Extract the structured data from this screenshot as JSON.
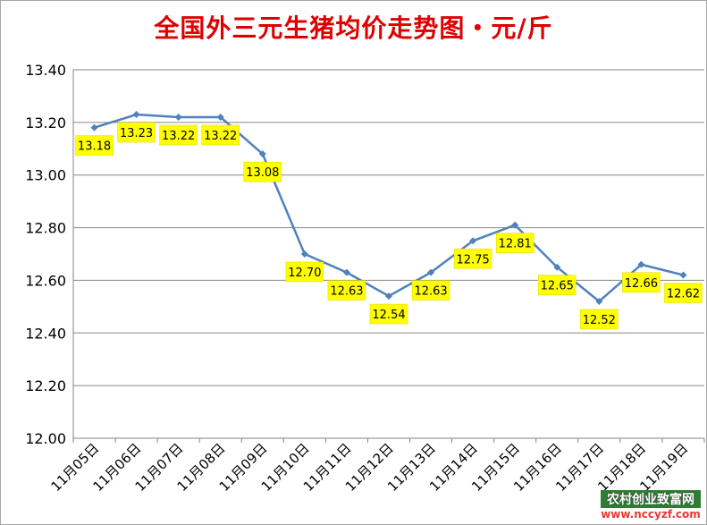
{
  "chart_data": {
    "type": "line",
    "title": "全国外三元生猪均价走势图・元/斤",
    "categories": [
      "11月05日",
      "11月06日",
      "11月07日",
      "11月08日",
      "11月09日",
      "11月10日",
      "11月11日",
      "11月12日",
      "11月13日",
      "11月14日",
      "11月15日",
      "11月16日",
      "11月17日",
      "11月18日",
      "11月19日"
    ],
    "values": [
      13.18,
      13.23,
      13.22,
      13.22,
      13.08,
      12.7,
      12.63,
      12.54,
      12.63,
      12.75,
      12.81,
      12.65,
      12.52,
      12.66,
      12.62
    ],
    "data_labels": [
      "13.18",
      "13.23",
      "13.22",
      "13.22",
      "13.08",
      "12.70",
      "12.63",
      "12.54",
      "12.63",
      "12.75",
      "12.81",
      "12.65",
      "12.52",
      "12.66",
      "12.62"
    ],
    "yticks": [
      "12.00",
      "12.20",
      "12.40",
      "12.60",
      "12.80",
      "13.00",
      "13.20",
      "13.40"
    ],
    "ylim": [
      12.0,
      13.4
    ],
    "grid": true,
    "legend": "none",
    "line_color": "#4f81bd",
    "label_bg_color": "#ffff00"
  },
  "watermark": {
    "name": "农村创业致富网",
    "url": "www.nccyzf.com"
  }
}
